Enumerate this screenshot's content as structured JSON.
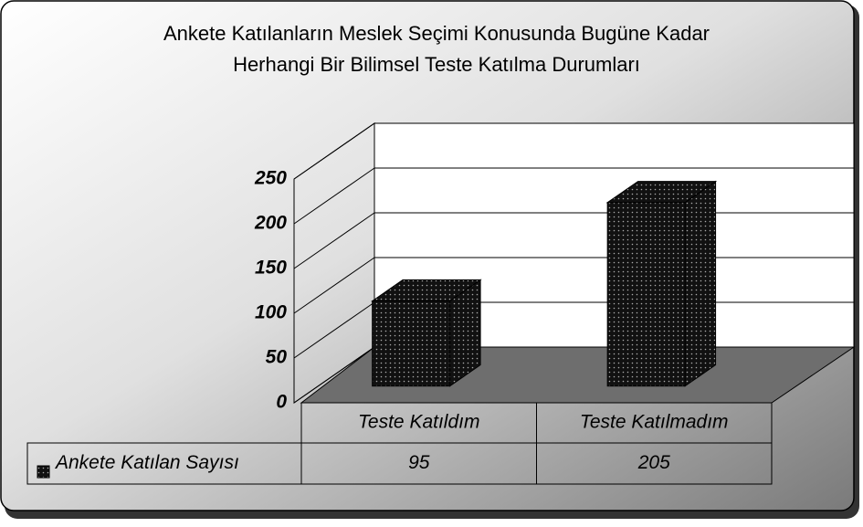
{
  "chart_data": {
    "type": "bar3d",
    "title": [
      "Ankete Katılanların Meslek Seçimi Konusunda Bugüne Kadar",
      "Herhangi Bir Bilimsel Teste Katılma Durumları"
    ],
    "categories": [
      "Teste Katıldım",
      "Teste Katılmadım"
    ],
    "series": [
      {
        "name": "Ankete Katılan Sayısı",
        "color": "#111111",
        "values": [
          95,
          205
        ]
      }
    ],
    "ylim": [
      0,
      250
    ],
    "yticks": [
      0,
      50,
      100,
      150,
      200,
      250
    ],
    "grid": true,
    "data_table": true
  }
}
